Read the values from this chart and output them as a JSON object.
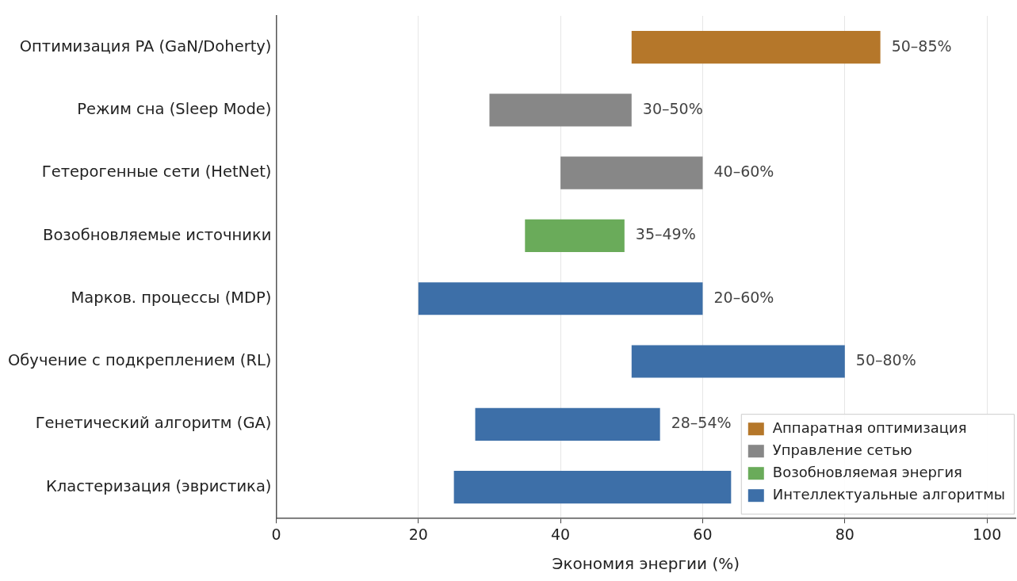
{
  "chart_data": {
    "type": "bar",
    "orientation": "horizontal",
    "xlabel": "Экономия энергии (%)",
    "categories": [
      "Оптимизация PA (GaN/Doherty)",
      "Режим сна (Sleep Mode)",
      "Гетерогенные сети (HetNet)",
      "Возобновляемые источники",
      "Марков. процессы (MDP)",
      "Обучение с подкреплением (RL)",
      "Генетический алгоритм (GA)",
      "Кластеризация (эвристика)"
    ],
    "series": [
      {
        "name": "Аппаратная оптимизация",
        "color": "#b5772a",
        "base": [
          50,
          null,
          null,
          null,
          null,
          null,
          null,
          null
        ],
        "values": [
          35,
          null,
          null,
          null,
          null,
          null,
          null,
          null
        ]
      },
      {
        "name": "Управление сетью",
        "color": "#878787",
        "base": [
          null,
          30,
          40,
          null,
          null,
          null,
          null,
          null
        ],
        "values": [
          null,
          20,
          20,
          null,
          null,
          null,
          null,
          null
        ]
      },
      {
        "name": "Возобновляемая энергия",
        "color": "#6aab5a",
        "base": [
          null,
          null,
          null,
          35,
          null,
          null,
          null,
          null
        ],
        "values": [
          null,
          null,
          null,
          14,
          null,
          null,
          null,
          null
        ]
      },
      {
        "name": "Интеллектуальные алгоритмы",
        "color": "#3d6fa8",
        "base": [
          null,
          null,
          null,
          null,
          20,
          50,
          28,
          25
        ],
        "values": [
          null,
          null,
          null,
          null,
          40,
          30,
          26,
          39
        ]
      }
    ],
    "annotations": [
      {
        "text": "50–85%",
        "x": 85,
        "y": "Оптимизация PA (GaN/Doherty)"
      },
      {
        "text": "30–50%",
        "x": 50,
        "y": "Режим сна (Sleep Mode)"
      },
      {
        "text": "40–60%",
        "x": 60,
        "y": "Гетерогенные сети (HetNet)"
      },
      {
        "text": "35–49%",
        "x": 49,
        "y": "Возобновляемые источники"
      },
      {
        "text": "20–60%",
        "x": 60,
        "y": "Марков. процессы (MDP)"
      },
      {
        "text": "50–80%",
        "x": 80,
        "y": "Обучение с подкреплением (RL)"
      },
      {
        "text": "28–54%",
        "x": 54,
        "y": "Генетический алгоритм (GA)"
      }
    ],
    "xlim": [
      0,
      104
    ],
    "xticks": [
      0,
      20,
      40,
      60,
      80,
      100
    ],
    "grid": "x",
    "legend": "bottom right"
  }
}
